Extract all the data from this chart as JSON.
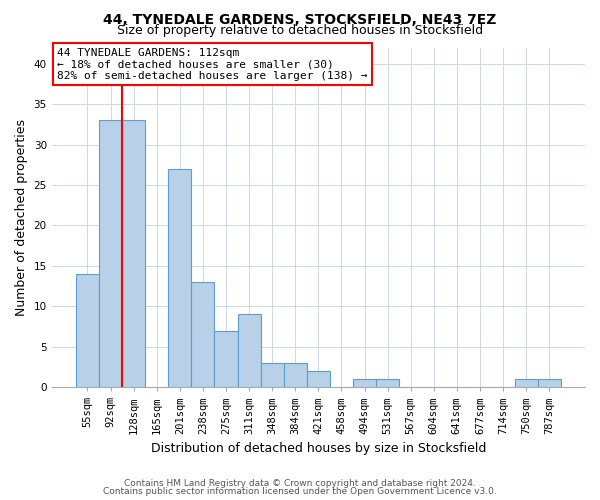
{
  "title1": "44, TYNEDALE GARDENS, STOCKSFIELD, NE43 7EZ",
  "title2": "Size of property relative to detached houses in Stocksfield",
  "xlabel": "Distribution of detached houses by size in Stocksfield",
  "ylabel": "Number of detached properties",
  "categories": [
    "55sqm",
    "92sqm",
    "128sqm",
    "165sqm",
    "201sqm",
    "238sqm",
    "275sqm",
    "311sqm",
    "348sqm",
    "384sqm",
    "421sqm",
    "458sqm",
    "494sqm",
    "531sqm",
    "567sqm",
    "604sqm",
    "641sqm",
    "677sqm",
    "714sqm",
    "750sqm",
    "787sqm"
  ],
  "values": [
    14,
    33,
    33,
    0,
    27,
    13,
    7,
    9,
    3,
    3,
    2,
    0,
    1,
    1,
    0,
    0,
    0,
    0,
    0,
    1,
    1
  ],
  "bar_color": "#b8d0e8",
  "bar_edge_color": "#5a9fd4",
  "annotation_text": "44 TYNEDALE GARDENS: 112sqm\n← 18% of detached houses are smaller (30)\n82% of semi-detached houses are larger (138) →",
  "annotation_box_color": "white",
  "annotation_box_edge_color": "red",
  "vline_color": "red",
  "ylim": [
    0,
    42
  ],
  "yticks": [
    0,
    5,
    10,
    15,
    20,
    25,
    30,
    35,
    40
  ],
  "footer1": "Contains HM Land Registry data © Crown copyright and database right 2024.",
  "footer2": "Contains public sector information licensed under the Open Government Licence v3.0.",
  "bg_color": "white",
  "grid_color": "#ccd8ea",
  "title1_fontsize": 10,
  "title2_fontsize": 9,
  "xlabel_fontsize": 9,
  "ylabel_fontsize": 9,
  "tick_fontsize": 7.5,
  "annot_fontsize": 8,
  "footer_fontsize": 6.5
}
